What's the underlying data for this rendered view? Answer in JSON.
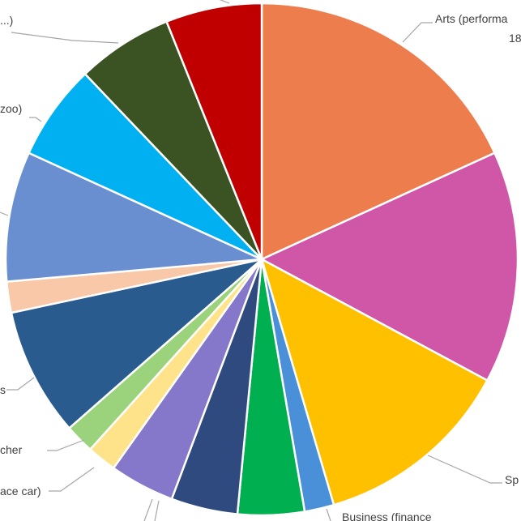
{
  "chart_data": {
    "type": "pie",
    "start_angle_deg": 0,
    "direction": "clockwise",
    "slices": [
      {
        "label_lines": [
          "Arts (performa",
          "18"
        ],
        "value": 18.6,
        "color": "#ED7D4D"
      },
      {
        "label_lines": [],
        "value": 15.0,
        "color": "#D056A8"
      },
      {
        "label_lines": [
          "Sp"
        ],
        "value": 12.9,
        "color": "#FFC000"
      },
      {
        "label_lines": [
          "Business (finance"
        ],
        "value": 1.9,
        "color": "#4A90D9"
      },
      {
        "label_lines": [],
        "value": 4.3,
        "color": "#00B050"
      },
      {
        "label_lines": [],
        "value": 4.3,
        "color": "#2E4A7E"
      },
      {
        "label_lines": [],
        "value": 4.2,
        "color": "#8577C9"
      },
      {
        "label_lines": [
          "ace car)"
        ],
        "value": 1.9,
        "color": "#FFE38A"
      },
      {
        "label_lines": [
          "cher"
        ],
        "value": 1.9,
        "color": "#9BD27C"
      },
      {
        "label_lines": [
          "s"
        ],
        "value": 8.3,
        "color": "#2A5B8E"
      },
      {
        "label_lines": [],
        "value": 2.0,
        "color": "#F8C8A8"
      },
      {
        "label_lines": [],
        "value": 8.4,
        "color": "#6A8FD0"
      },
      {
        "label_lines": [
          "zoo)"
        ],
        "value": 6.2,
        "color": "#00B0F0"
      },
      {
        "label_lines": [
          "...)"
        ],
        "value": 6.2,
        "color": "#3B5323"
      },
      {
        "label_lines": [],
        "value": 6.2,
        "color": "#C00000"
      }
    ]
  }
}
